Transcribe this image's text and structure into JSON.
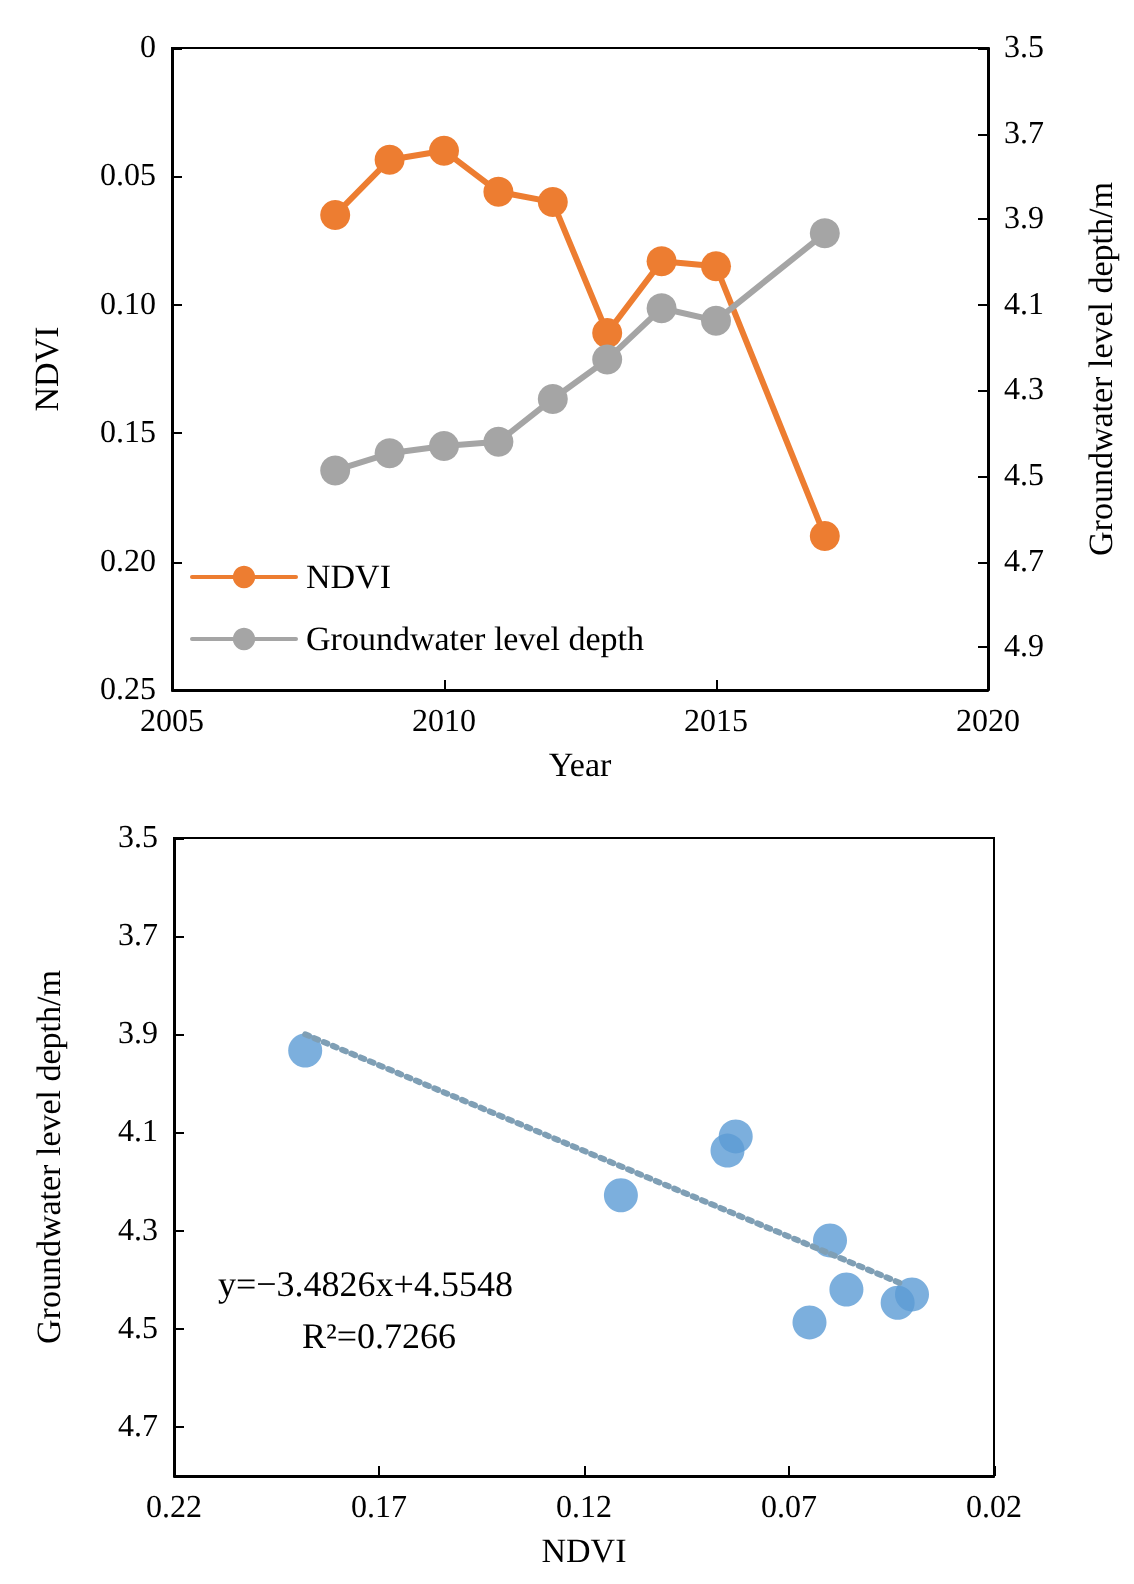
{
  "chart_data": [
    {
      "type": "line",
      "xlabel": "Year",
      "ylabel": "NDVI",
      "y2label": "Groundwater level depth/m",
      "x": [
        2008,
        2009,
        2010,
        2011,
        2012,
        2013,
        2014,
        2015,
        2017
      ],
      "series": [
        {
          "name": "NDVI",
          "color": "#ed7d31",
          "values": [
            0.065,
            0.0435,
            0.04,
            0.056,
            0.06,
            0.111,
            0.083,
            0.085,
            0.19
          ]
        },
        {
          "name": "Groundwater level depth",
          "color": "#a5a5a5",
          "axis": "y2",
          "values": [
            4.487,
            4.447,
            4.43,
            4.42,
            4.32,
            4.228,
            4.108,
            4.137,
            3.933
          ]
        }
      ],
      "xlim": [
        2005,
        2020
      ],
      "xticks": [
        2005,
        2010,
        2015,
        2020
      ],
      "ylim": [
        0.25,
        0
      ],
      "yticks": [
        0,
        0.05,
        {
          "value": 0.1,
          "label": "0.10"
        },
        0.15,
        {
          "value": 0.2,
          "label": "0.20"
        },
        0.25
      ],
      "y2lim": [
        5.0,
        3.5
      ],
      "y2ticks": [
        3.5,
        3.7,
        3.9,
        4.1,
        4.3,
        4.5,
        4.7,
        4.9
      ],
      "legend": "bottom left",
      "marker": "circle",
      "grid": false
    },
    {
      "type": "scatter",
      "xlabel": "NDVI",
      "ylabel": "Groundwater level depth/m",
      "series": [
        {
          "color": "#5b9bd5",
          "x": [
            0.065,
            0.0435,
            0.04,
            0.056,
            0.06,
            0.111,
            0.083,
            0.085,
            0.188
          ],
          "values": [
            4.487,
            4.447,
            4.43,
            4.42,
            4.32,
            4.228,
            4.108,
            4.137,
            3.933
          ],
          "marker": "circle"
        },
        {
          "type": "line",
          "color": "#7f9fb5",
          "x": [
            0.188,
            0.042
          ],
          "values": [
            3.9,
            4.41
          ],
          "line_style": "dotted",
          "marker": "none"
        }
      ],
      "xlim": [
        0.22,
        0.02
      ],
      "xticks": [
        0.22,
        0.17,
        0.12,
        0.07,
        0.02
      ],
      "ylim": [
        4.8,
        3.5
      ],
      "yticks": [
        3.5,
        3.7,
        3.9,
        4.1,
        4.3,
        4.5,
        4.7
      ],
      "annotations": [
        "y=−3.4826x+4.5548",
        "R²=0.7266"
      ],
      "grid": false
    }
  ]
}
